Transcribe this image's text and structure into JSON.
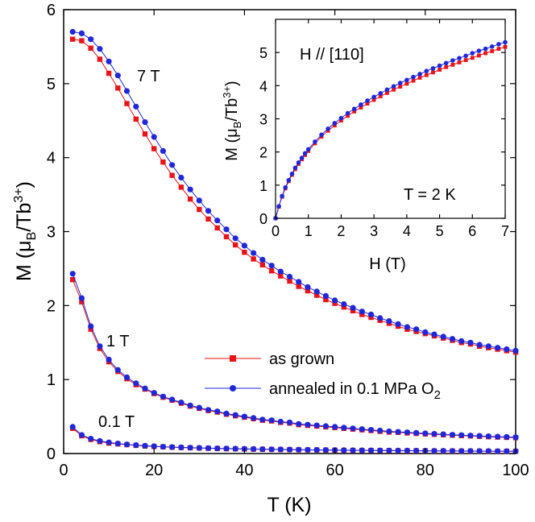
{
  "chart_data": {
    "main": {
      "type": "line",
      "xlabel": "T (K)",
      "ylabel_main": "M (μ",
      "ylabel_sub": "B",
      "ylabel_mid": "/Tb",
      "ylabel_sup": "3+",
      "ylabel_end": ")",
      "xlim": [
        0,
        100
      ],
      "ylim": [
        0,
        6
      ],
      "xticks": [
        "0",
        "20",
        "40",
        "60",
        "80",
        "100"
      ],
      "yticks": [
        "0",
        "1",
        "2",
        "3",
        "4",
        "5",
        "6"
      ],
      "annotations": {
        "field_7T": "7 T",
        "field_1T": "1 T",
        "field_01T": "0.1 T"
      },
      "legend": {
        "position": "lower-right",
        "as_grown": "as grown",
        "annealed_main": "annealed in 0.1 MPa O",
        "annealed_sub": "2"
      },
      "x": [
        2,
        4,
        6,
        8,
        10,
        12,
        14,
        16,
        18,
        20,
        22,
        24,
        26,
        28,
        30,
        32,
        34,
        36,
        38,
        40,
        42,
        44,
        46,
        48,
        50,
        52,
        54,
        56,
        58,
        60,
        62,
        64,
        66,
        68,
        70,
        72,
        74,
        76,
        78,
        80,
        82,
        84,
        86,
        88,
        90,
        92,
        94,
        96,
        98,
        100
      ],
      "series": [
        {
          "name": "as grown",
          "field": "7 T",
          "color": "#e8141a",
          "marker": "square",
          "values": [
            5.6,
            5.58,
            5.48,
            5.33,
            5.14,
            4.94,
            4.73,
            4.52,
            4.32,
            4.12,
            3.94,
            3.76,
            3.6,
            3.44,
            3.3,
            3.17,
            3.05,
            2.93,
            2.82,
            2.72,
            2.63,
            2.55,
            2.47,
            2.4,
            2.33,
            2.26,
            2.2,
            2.14,
            2.08,
            2.03,
            1.98,
            1.93,
            1.88,
            1.84,
            1.8,
            1.76,
            1.72,
            1.68,
            1.65,
            1.62,
            1.59,
            1.56,
            1.53,
            1.5,
            1.48,
            1.45,
            1.43,
            1.41,
            1.39,
            1.37
          ]
        },
        {
          "name": "annealed in 0.1 MPa O2",
          "field": "7 T",
          "color": "#1f27d9",
          "marker": "circle",
          "values": [
            5.7,
            5.68,
            5.6,
            5.47,
            5.3,
            5.11,
            4.9,
            4.69,
            4.48,
            4.28,
            4.09,
            3.9,
            3.73,
            3.57,
            3.42,
            3.28,
            3.15,
            3.03,
            2.91,
            2.81,
            2.71,
            2.62,
            2.54,
            2.46,
            2.39,
            2.32,
            2.25,
            2.19,
            2.13,
            2.07,
            2.02,
            1.97,
            1.92,
            1.88,
            1.83,
            1.79,
            1.75,
            1.71,
            1.68,
            1.64,
            1.61,
            1.58,
            1.55,
            1.52,
            1.5,
            1.47,
            1.45,
            1.43,
            1.41,
            1.39
          ]
        },
        {
          "name": "as grown",
          "field": "1 T",
          "color": "#e8141a",
          "marker": "square",
          "values": [
            2.35,
            2.05,
            1.68,
            1.42,
            1.24,
            1.11,
            1.01,
            0.93,
            0.87,
            0.81,
            0.76,
            0.72,
            0.68,
            0.64,
            0.61,
            0.58,
            0.56,
            0.53,
            0.51,
            0.49,
            0.47,
            0.45,
            0.44,
            0.42,
            0.41,
            0.39,
            0.38,
            0.37,
            0.36,
            0.35,
            0.34,
            0.33,
            0.32,
            0.31,
            0.3,
            0.29,
            0.285,
            0.278,
            0.271,
            0.265,
            0.259,
            0.253,
            0.247,
            0.242,
            0.237,
            0.232,
            0.227,
            0.222,
            0.218,
            0.214
          ]
        },
        {
          "name": "annealed in 0.1 MPa O2",
          "field": "1 T",
          "color": "#1f27d9",
          "marker": "circle",
          "values": [
            2.43,
            2.1,
            1.72,
            1.45,
            1.27,
            1.13,
            1.03,
            0.95,
            0.88,
            0.82,
            0.77,
            0.73,
            0.69,
            0.65,
            0.62,
            0.59,
            0.57,
            0.54,
            0.52,
            0.5,
            0.48,
            0.46,
            0.45,
            0.43,
            0.42,
            0.4,
            0.39,
            0.38,
            0.37,
            0.36,
            0.35,
            0.34,
            0.33,
            0.32,
            0.31,
            0.3,
            0.293,
            0.286,
            0.279,
            0.272,
            0.266,
            0.26,
            0.254,
            0.248,
            0.243,
            0.238,
            0.233,
            0.228,
            0.224,
            0.22
          ]
        },
        {
          "name": "as grown",
          "field": "0.1 T",
          "color": "#e8141a",
          "marker": "square",
          "values": [
            0.34,
            0.24,
            0.19,
            0.16,
            0.14,
            0.13,
            0.12,
            0.11,
            0.1,
            0.095,
            0.09,
            0.085,
            0.081,
            0.077,
            0.074,
            0.071,
            0.068,
            0.065,
            0.063,
            0.061,
            0.059,
            0.057,
            0.055,
            0.053,
            0.052,
            0.05,
            0.049,
            0.048,
            0.046,
            0.045,
            0.044,
            0.043,
            0.042,
            0.041,
            0.04,
            0.039,
            0.038,
            0.037,
            0.037,
            0.036,
            0.035,
            0.034,
            0.034,
            0.033,
            0.032,
            0.032,
            0.031,
            0.031,
            0.03,
            0.03
          ]
        },
        {
          "name": "annealed in 0.1 MPa O2",
          "field": "0.1 T",
          "color": "#1f27d9",
          "marker": "circle",
          "values": [
            0.36,
            0.25,
            0.2,
            0.17,
            0.15,
            0.135,
            0.123,
            0.113,
            0.105,
            0.098,
            0.092,
            0.087,
            0.083,
            0.079,
            0.076,
            0.073,
            0.07,
            0.067,
            0.065,
            0.063,
            0.061,
            0.059,
            0.057,
            0.055,
            0.053,
            0.052,
            0.05,
            0.049,
            0.048,
            0.047,
            0.045,
            0.044,
            0.043,
            0.042,
            0.041,
            0.04,
            0.039,
            0.039,
            0.038,
            0.037,
            0.036,
            0.036,
            0.035,
            0.034,
            0.034,
            0.033,
            0.033,
            0.032,
            0.032,
            0.031
          ]
        }
      ]
    },
    "inset": {
      "type": "line",
      "xlabel": "H (T)",
      "ylabel_main": "M (μ",
      "ylabel_sub": "B",
      "ylabel_mid": "/Tb",
      "ylabel_sup": "3+",
      "ylabel_end": ")",
      "xlim": [
        0,
        7
      ],
      "ylim": [
        0,
        6
      ],
      "xticks": [
        "0",
        "1",
        "2",
        "3",
        "4",
        "5",
        "6",
        "7"
      ],
      "yticks": [
        "0",
        "1",
        "2",
        "3",
        "4",
        "5"
      ],
      "annotations": {
        "direction": "H // [110]",
        "temperature": "T = 2 K"
      },
      "x": [
        0,
        0.1,
        0.2,
        0.3,
        0.4,
        0.5,
        0.6,
        0.7,
        0.8,
        0.9,
        1.0,
        1.2,
        1.4,
        1.6,
        1.8,
        2.0,
        2.2,
        2.4,
        2.6,
        2.8,
        3.0,
        3.2,
        3.4,
        3.6,
        3.8,
        4.0,
        4.2,
        4.4,
        4.6,
        4.8,
        5.0,
        5.2,
        5.4,
        5.6,
        5.8,
        6.0,
        6.2,
        6.4,
        6.6,
        6.8,
        7.0
      ],
      "series": [
        {
          "name": "as grown",
          "color": "#e8141a",
          "marker": "square",
          "values": [
            0,
            0.35,
            0.65,
            0.9,
            1.12,
            1.31,
            1.48,
            1.64,
            1.78,
            1.91,
            2.03,
            2.26,
            2.46,
            2.64,
            2.8,
            2.95,
            3.09,
            3.22,
            3.34,
            3.46,
            3.57,
            3.68,
            3.78,
            3.88,
            3.97,
            4.06,
            4.15,
            4.24,
            4.32,
            4.4,
            4.48,
            4.56,
            4.63,
            4.7,
            4.77,
            4.84,
            4.91,
            4.98,
            5.04,
            5.11,
            5.17
          ]
        },
        {
          "name": "annealed in 0.1 MPa O2",
          "color": "#1f27d9",
          "marker": "circle",
          "values": [
            0,
            0.36,
            0.67,
            0.93,
            1.15,
            1.34,
            1.52,
            1.68,
            1.82,
            1.96,
            2.08,
            2.31,
            2.52,
            2.7,
            2.87,
            3.02,
            3.17,
            3.3,
            3.43,
            3.55,
            3.66,
            3.77,
            3.88,
            3.98,
            4.08,
            4.17,
            4.26,
            4.35,
            4.44,
            4.52,
            4.6,
            4.68,
            4.76,
            4.83,
            4.9,
            4.98,
            5.05,
            5.11,
            5.18,
            5.25,
            5.31
          ]
        }
      ]
    }
  }
}
